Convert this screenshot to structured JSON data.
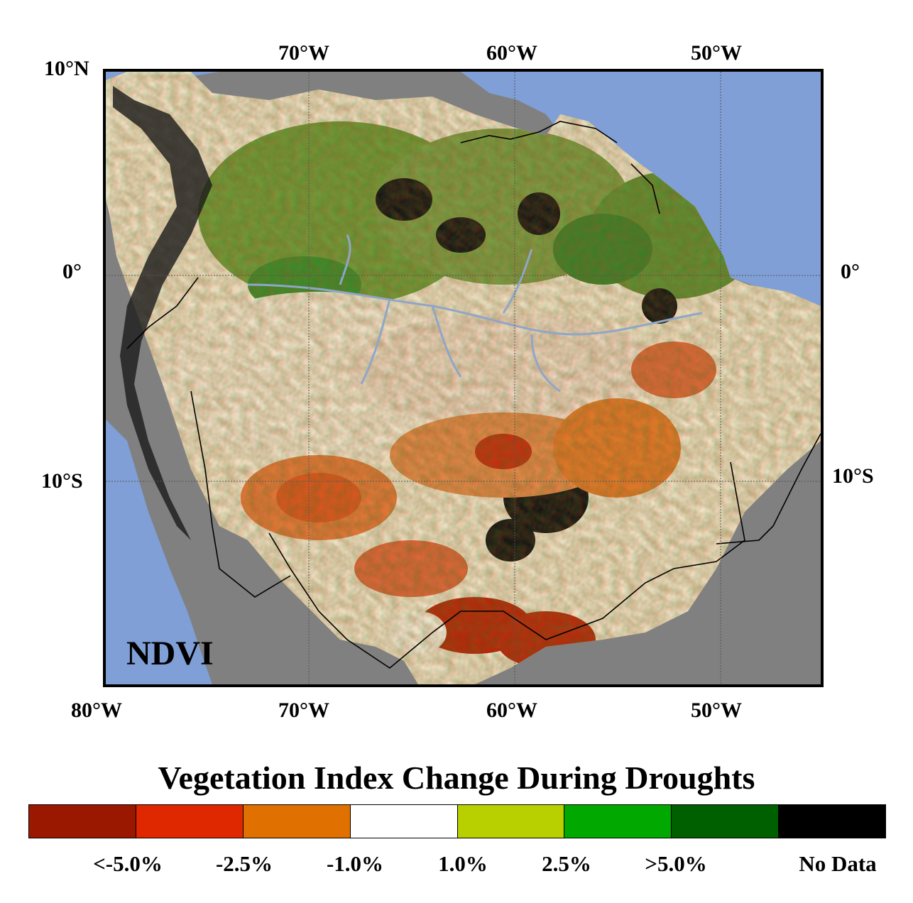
{
  "map": {
    "title": "NDVI",
    "ocean_color": "#7f9fd6",
    "land_nodata_color": "#808080",
    "lon_labels_top": [
      "70°W",
      "60°W",
      "50°W"
    ],
    "lon_labels_bottom": [
      "80°W",
      "70°W",
      "60°W",
      "50°W"
    ],
    "lat_labels_left": [
      "10°N",
      "0°",
      "10°S"
    ],
    "lat_labels_right": [
      "0°",
      "10°S"
    ]
  },
  "legend": {
    "title": "Vegetation Index Change During Droughts",
    "swatches": [
      {
        "color": "#9b1800"
      },
      {
        "color": "#e02800"
      },
      {
        "color": "#e07000"
      },
      {
        "color": "#ffffff"
      },
      {
        "color": "#b8d000"
      },
      {
        "color": "#00a800"
      },
      {
        "color": "#006000"
      },
      {
        "color": "#000000"
      }
    ],
    "labels": [
      "<-5.0%",
      "-2.5%",
      "-1.0%",
      "1.0%",
      "2.5%",
      ">5.0%",
      "No Data"
    ]
  }
}
